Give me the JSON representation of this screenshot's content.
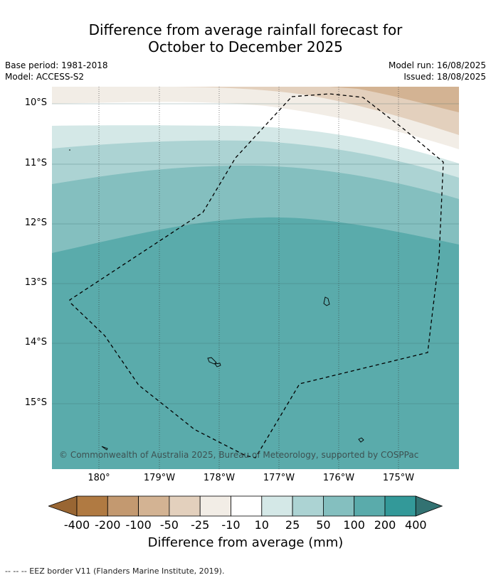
{
  "title_line1": "Difference from average rainfall forecast for",
  "title_line2": "October to December 2025",
  "base_period": "Base period: 1981-2018",
  "model": "Model: ACCESS-S2",
  "model_run": "Model run: 16/08/2025",
  "issued": "Issued: 18/08/2025",
  "lat_labels": [
    "10°S",
    "11°S",
    "12°S",
    "13°S",
    "14°S",
    "15°S"
  ],
  "lon_labels": [
    "180°",
    "179°W",
    "178°W",
    "177°W",
    "176°W",
    "175°W"
  ],
  "copyright": "© Commonwealth of Australia 2025, Bureau of Meteorology, supported by COSPPac",
  "colorbar": {
    "ticks": [
      "-400",
      "-200",
      "-100",
      "-50",
      "-25",
      "-10",
      "10",
      "25",
      "50",
      "100",
      "200",
      "400"
    ],
    "colors": [
      "#996633",
      "#b07a42",
      "#c39970",
      "#d3b393",
      "#e3d0bd",
      "#f2ede6",
      "#ffffff",
      "#d4e8e7",
      "#acd3d3",
      "#84bfbf",
      "#5aabab",
      "#339999",
      "#327272"
    ],
    "label": "Difference from average (mm)"
  },
  "footnote": "--  --  -- EEZ border V11 (Flanders Marine Institute, 2019)."
}
